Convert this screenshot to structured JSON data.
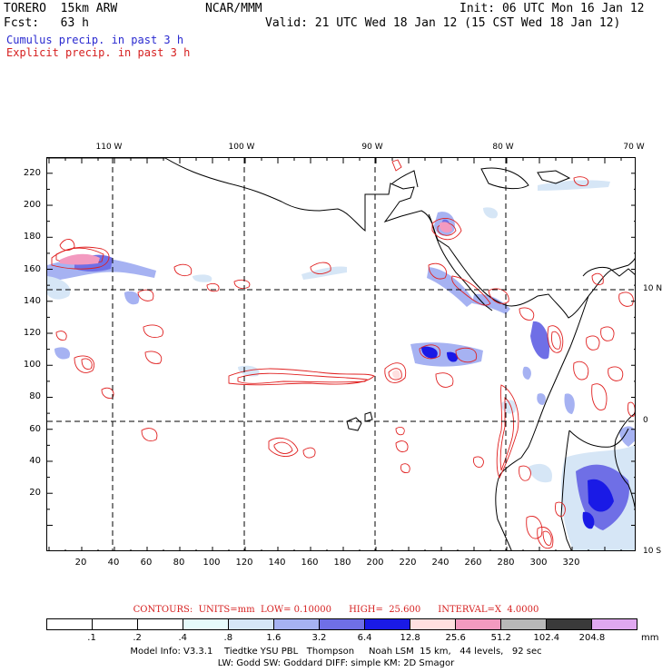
{
  "header": {
    "model": "TORERO  15km ARW",
    "org": "NCAR/MMM",
    "init": "Init: 06 UTC Mon 16 Jan 12",
    "fcst": "Fcst:   63 h",
    "valid": "Valid: 21 UTC Wed 18 Jan 12 (15 CST Wed 18 Jan 12)"
  },
  "legend_lines": {
    "cumulus": "Cumulus precip. in past 3 h",
    "explicit": "Explicit precip. in past 3 h",
    "cumulus_color": "#2a2ad0",
    "explicit_color": "#d62020"
  },
  "map": {
    "y_ticks": [
      "220",
      "200",
      "180",
      "160",
      "140",
      "120",
      "100",
      "80",
      "60",
      "40",
      "20"
    ],
    "x_ticks": [
      "20",
      "40",
      "60",
      "80",
      "100",
      "120",
      "140",
      "160",
      "180",
      "200",
      "220",
      "240",
      "260",
      "280",
      "300",
      "320"
    ],
    "lon_labels": [
      "110 W",
      "100 W",
      "90 W",
      "80 W",
      "70 W"
    ],
    "lat_labels": [
      "10 N",
      "0",
      "10 S"
    ]
  },
  "contours": {
    "text": "CONTOURS:  UNITS=mm  LOW= 0.10000      HIGH=  25.600      INTERVAL=X  4.0000"
  },
  "colorbar": {
    "labels": [
      ".1",
      ".2",
      ".4",
      ".8",
      "1.6",
      "3.2",
      "6.4",
      "12.8",
      "25.6",
      "51.2",
      "102.4",
      "204.8"
    ],
    "unit": "mm",
    "colors": [
      "#ffffff",
      "#ffffff",
      "#ffffff",
      "#e6fbfb",
      "#d6e6f6",
      "#a6b2f2",
      "#6f6fe6",
      "#1a1ae6",
      "#ffe0e0",
      "#f39ac0",
      "#b8b8b8",
      "#3a3a3a",
      "#e0a8f0"
    ]
  },
  "footer": {
    "line1": "Model Info: V3.3.1    Tiedtke YSU PBL   Thompson     Noah LSM  15 km,   44 levels,   92 sec",
    "line2": "LW: Godd SW: Goddard DIFF: simple KM: 2D Smagor"
  }
}
